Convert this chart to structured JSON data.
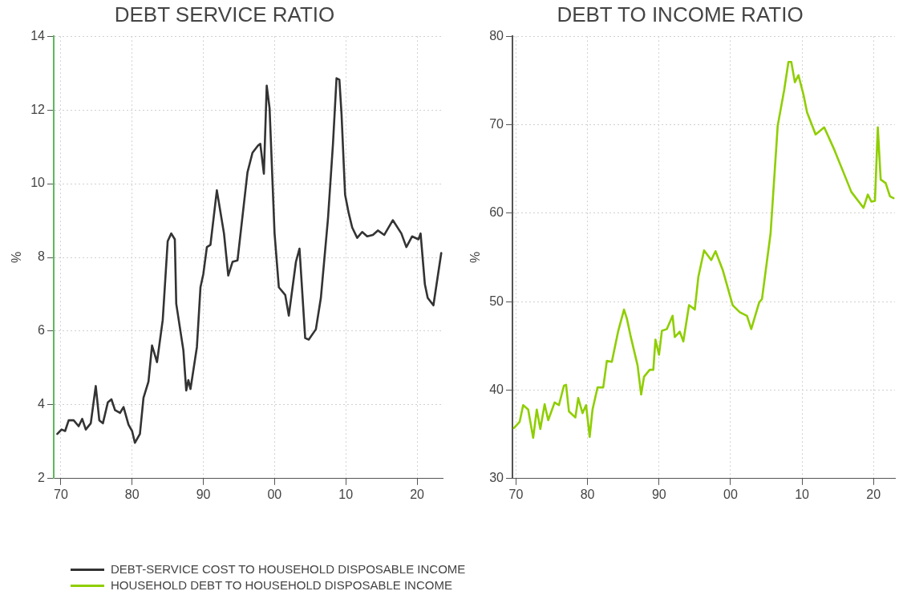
{
  "chart_data": [
    {
      "type": "line",
      "title": "DEBT SERVICE RATIO",
      "ylabel": "%",
      "xlim": [
        1969,
        2023.6
      ],
      "ylim": [
        2,
        14
      ],
      "yticks": [
        2,
        4,
        6,
        8,
        10,
        12,
        14
      ],
      "xticks": [
        {
          "value": 1970,
          "label": "70"
        },
        {
          "value": 1980,
          "label": "80"
        },
        {
          "value": 1990,
          "label": "90"
        },
        {
          "value": 2000,
          "label": "00"
        },
        {
          "value": 2010,
          "label": "10"
        },
        {
          "value": 2020,
          "label": "20"
        }
      ],
      "grid": true,
      "legend": "bottom",
      "marker": "none",
      "line_style": "solid",
      "series": [
        {
          "name": "DEBT-SERVICE COST TO HOUSEHOLD DISPOSABLE INCOME",
          "color": "#333333",
          "x": [
            1969.5,
            1970.1,
            1970.6,
            1971.1,
            1971.8,
            1972.5,
            1973,
            1973.5,
            1974.2,
            1974.9,
            1975.4,
            1975.9,
            1976.6,
            1977.1,
            1977.6,
            1978.3,
            1978.8,
            1979.5,
            1980,
            1980.4,
            1981.1,
            1981.6,
            1982.3,
            1982.8,
            1983.5,
            1984.3,
            1985,
            1985.5,
            1986,
            1986.2,
            1987.2,
            1987.6,
            1987.9,
            1988.2,
            1989.1,
            1989.6,
            1990,
            1990.5,
            1991,
            1991.9,
            1992.9,
            1993.5,
            1994.1,
            1994.8,
            1996.2,
            1996.9,
            1997.7,
            1998,
            1998.5,
            1998.9,
            1999.3,
            2000,
            2000.6,
            2001.5,
            2002,
            2003,
            2003.5,
            2004.3,
            2004.8,
            2005.8,
            2006.5,
            2007.5,
            2008.2,
            2008.7,
            2009.1,
            2009.4,
            2009.9,
            2010.4,
            2010.9,
            2011.6,
            2012.3,
            2013,
            2013.8,
            2014.5,
            2015.4,
            2016.6,
            2017.8,
            2018.5,
            2019.3,
            2020.2,
            2020.5,
            2021.1,
            2021.5,
            2022.3,
            2023.4
          ],
          "values": [
            3.21,
            3.33,
            3.29,
            3.58,
            3.58,
            3.42,
            3.62,
            3.33,
            3.5,
            4.51,
            3.58,
            3.5,
            4.07,
            4.15,
            3.86,
            3.78,
            3.94,
            3.46,
            3.29,
            2.97,
            3.21,
            4.19,
            4.63,
            5.61,
            5.16,
            6.3,
            8.44,
            8.65,
            8.49,
            6.74,
            5.48,
            4.39,
            4.67,
            4.43,
            5.57,
            7.19,
            7.55,
            8.28,
            8.34,
            9.82,
            8.65,
            7.51,
            7.88,
            7.92,
            10.31,
            10.84,
            11.04,
            11.08,
            10.27,
            12.66,
            12.05,
            8.65,
            7.19,
            6.98,
            6.42,
            7.88,
            8.24,
            5.81,
            5.77,
            6.05,
            6.9,
            9.05,
            11.08,
            12.86,
            12.82,
            11.89,
            9.7,
            9.21,
            8.81,
            8.53,
            8.69,
            8.57,
            8.61,
            8.73,
            8.61,
            9.01,
            8.65,
            8.28,
            8.57,
            8.49,
            8.65,
            7.27,
            6.9,
            6.7,
            8.12
          ]
        }
      ]
    },
    {
      "type": "line",
      "title": "DEBT TO INCOME RATIO",
      "ylabel": "%",
      "xlim": [
        1969.5,
        2023
      ],
      "ylim": [
        30,
        80
      ],
      "yticks": [
        30,
        40,
        50,
        60,
        70,
        80
      ],
      "xticks": [
        {
          "value": 1970,
          "label": "70"
        },
        {
          "value": 1980,
          "label": "80"
        },
        {
          "value": 1990,
          "label": "90"
        },
        {
          "value": 2000,
          "label": "00"
        },
        {
          "value": 2010,
          "label": "10"
        },
        {
          "value": 2020,
          "label": "20"
        }
      ],
      "grid": true,
      "legend": "bottom",
      "marker": "none",
      "line_style": "solid",
      "series": [
        {
          "name": "HOUSEHOLD DEBT TO HOUSEHOLD DISPOSABLE INCOME",
          "color": "#8fce00",
          "x": [
            1969.7,
            1970.5,
            1971,
            1971.7,
            1972.4,
            1972.9,
            1973.4,
            1974,
            1974.5,
            1975.4,
            1976,
            1976.7,
            1977,
            1977.4,
            1978.3,
            1978.7,
            1979.3,
            1979.8,
            1980.3,
            1980.7,
            1981.4,
            1982.2,
            1982.7,
            1983.4,
            1984.3,
            1985.1,
            1985.5,
            1986,
            1987,
            1987.5,
            1987.9,
            1988.7,
            1989.2,
            1989.5,
            1990,
            1990.4,
            1991.1,
            1991.9,
            1992.2,
            1992.9,
            1993.4,
            1994.2,
            1995,
            1995.5,
            1996.3,
            1997.3,
            1997.9,
            1998.9,
            2000.3,
            2001.3,
            2002.3,
            2002.9,
            2004,
            2004.4,
            2005.6,
            2006.6,
            2007.5,
            2008.1,
            2008.5,
            2009,
            2009.5,
            2010.2,
            2010.7,
            2011.9,
            2013.1,
            2014.5,
            2015.7,
            2016.9,
            2018.6,
            2019.2,
            2019.7,
            2020.2,
            2020.6,
            2021,
            2021.7,
            2022.3,
            2022.8
          ],
          "values": [
            35.7,
            36.4,
            38.3,
            37.8,
            34.6,
            37.8,
            35.6,
            38.4,
            36.6,
            38.6,
            38.3,
            40.5,
            40.6,
            37.6,
            36.9,
            39.1,
            37.4,
            38.3,
            34.7,
            37.8,
            40.3,
            40.3,
            43.3,
            43.2,
            46.7,
            49.1,
            48.1,
            46.2,
            42.8,
            39.5,
            41.5,
            42.3,
            42.3,
            45.7,
            44,
            46.7,
            46.9,
            48.4,
            46,
            46.6,
            45.5,
            49.6,
            49.1,
            52.8,
            55.8,
            54.7,
            55.7,
            53.6,
            49.6,
            48.8,
            48.4,
            46.9,
            49.9,
            50.3,
            57.7,
            69.9,
            73.9,
            77.1,
            77.1,
            74.8,
            75.6,
            73.4,
            71.4,
            68.9,
            69.7,
            67.2,
            64.8,
            62.4,
            60.6,
            62.1,
            61.3,
            61.4,
            69.7,
            63.8,
            63.4,
            61.9,
            61.7
          ]
        }
      ]
    }
  ]
}
